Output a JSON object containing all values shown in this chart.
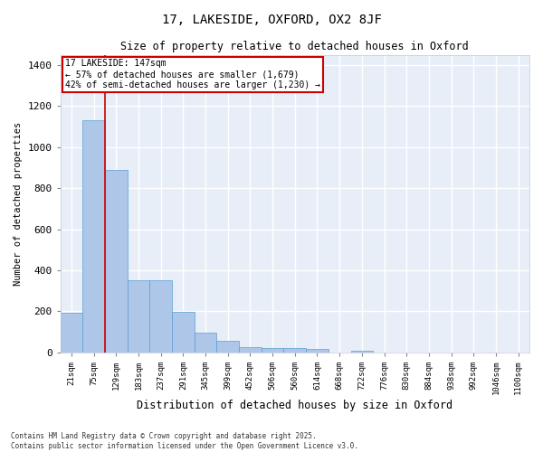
{
  "title_line1": "17, LAKESIDE, OXFORD, OX2 8JF",
  "title_line2": "Size of property relative to detached houses in Oxford",
  "xlabel": "Distribution of detached houses by size in Oxford",
  "ylabel": "Number of detached properties",
  "bar_color": "#aec6e8",
  "bar_edge_color": "#5a9fd4",
  "background_color": "#e8eef8",
  "grid_color": "#ffffff",
  "annotation_text": "17 LAKESIDE: 147sqm\n← 57% of detached houses are smaller (1,679)\n42% of semi-detached houses are larger (1,230) →",
  "vline_x": 1.5,
  "vline_color": "#cc0000",
  "annotation_box_color": "#cc0000",
  "categories": [
    "21sqm",
    "75sqm",
    "129sqm",
    "183sqm",
    "237sqm",
    "291sqm",
    "345sqm",
    "399sqm",
    "452sqm",
    "506sqm",
    "560sqm",
    "614sqm",
    "668sqm",
    "722sqm",
    "776sqm",
    "830sqm",
    "884sqm",
    "938sqm",
    "992sqm",
    "1046sqm",
    "1100sqm"
  ],
  "values": [
    193,
    1130,
    890,
    352,
    352,
    197,
    95,
    57,
    25,
    22,
    22,
    15,
    0,
    8,
    0,
    0,
    0,
    0,
    0,
    0,
    0
  ],
  "ylim": [
    0,
    1450
  ],
  "yticks": [
    0,
    200,
    400,
    600,
    800,
    1000,
    1200,
    1400
  ],
  "footnote": "Contains HM Land Registry data © Crown copyright and database right 2025.\nContains public sector information licensed under the Open Government Licence v3.0."
}
